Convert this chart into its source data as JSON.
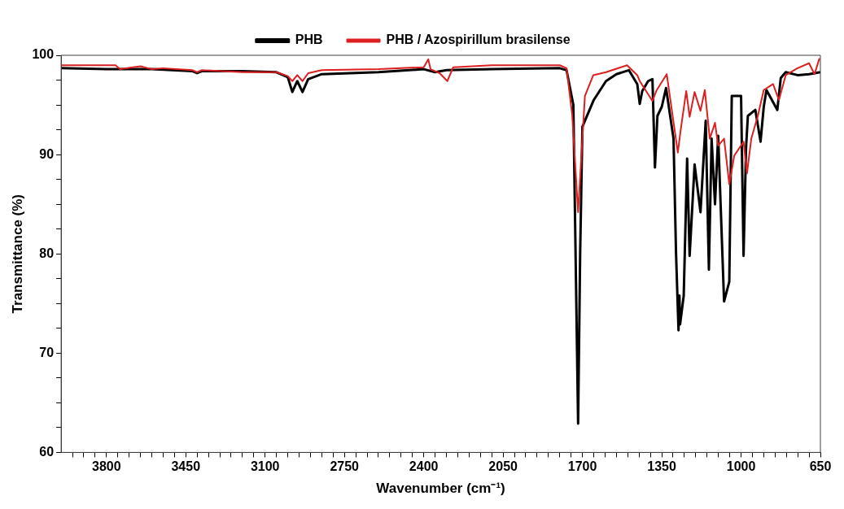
{
  "chart_data": {
    "type": "line",
    "xlabel": "Wavenumber (cm⁻¹)",
    "ylabel": "Transmittance (%)",
    "xlim": [
      4000,
      650
    ],
    "ylim": [
      60,
      100
    ],
    "xticks": [
      {
        "value": 3950,
        "label": null
      },
      {
        "value": 3900,
        "label": null
      },
      {
        "value": 3850,
        "label": null
      },
      3800,
      {
        "value": 3750,
        "label": null
      },
      {
        "value": 3700,
        "label": null
      },
      {
        "value": 3650,
        "label": null
      },
      {
        "value": 3600,
        "label": null
      },
      {
        "value": 3550,
        "label": null
      },
      {
        "value": 3500,
        "label": null
      },
      3450,
      {
        "value": 3400,
        "label": null
      },
      {
        "value": 3350,
        "label": null
      },
      {
        "value": 3300,
        "label": null
      },
      {
        "value": 3250,
        "label": null
      },
      {
        "value": 3200,
        "label": null
      },
      {
        "value": 3150,
        "label": null
      },
      3100,
      {
        "value": 3050,
        "label": null
      },
      {
        "value": 3000,
        "label": null
      },
      {
        "value": 2950,
        "label": null
      },
      {
        "value": 2900,
        "label": null
      },
      {
        "value": 2850,
        "label": null
      },
      {
        "value": 2800,
        "label": null
      },
      2750,
      {
        "value": 2700,
        "label": null
      },
      {
        "value": 2650,
        "label": null
      },
      {
        "value": 2600,
        "label": null
      },
      {
        "value": 2550,
        "label": null
      },
      {
        "value": 2500,
        "label": null
      },
      {
        "value": 2450,
        "label": null
      },
      2400,
      {
        "value": 2350,
        "label": null
      },
      {
        "value": 2300,
        "label": null
      },
      {
        "value": 2250,
        "label": null
      },
      {
        "value": 2200,
        "label": null
      },
      {
        "value": 2150,
        "label": null
      },
      {
        "value": 2100,
        "label": null
      },
      2050,
      {
        "value": 2000,
        "label": null
      },
      {
        "value": 1950,
        "label": null
      },
      {
        "value": 1900,
        "label": null
      },
      {
        "value": 1850,
        "label": null
      },
      {
        "value": 1800,
        "label": null
      },
      {
        "value": 1750,
        "label": null
      },
      1700,
      {
        "value": 1650,
        "label": null
      },
      {
        "value": 1600,
        "label": null
      },
      {
        "value": 1550,
        "label": null
      },
      {
        "value": 1500,
        "label": null
      },
      {
        "value": 1450,
        "label": null
      },
      {
        "value": 1400,
        "label": null
      },
      1350,
      {
        "value": 1300,
        "label": null
      },
      {
        "value": 1250,
        "label": null
      },
      {
        "value": 1200,
        "label": null
      },
      {
        "value": 1150,
        "label": null
      },
      {
        "value": 1100,
        "label": null
      },
      {
        "value": 1050,
        "label": null
      },
      1000,
      {
        "value": 950,
        "label": null
      },
      {
        "value": 900,
        "label": null
      },
      {
        "value": 850,
        "label": null
      },
      {
        "value": 800,
        "label": null
      },
      {
        "value": 750,
        "label": null
      },
      {
        "value": 700,
        "label": null
      },
      650
    ],
    "yticks": [
      60,
      {
        "value": 62.5,
        "label": null
      },
      {
        "value": 65,
        "label": null
      },
      {
        "value": 67.5,
        "label": null
      },
      70,
      {
        "value": 72.5,
        "label": null
      },
      {
        "value": 75,
        "label": null
      },
      {
        "value": 77.5,
        "label": null
      },
      80,
      {
        "value": 82.5,
        "label": null
      },
      {
        "value": 85,
        "label": null
      },
      {
        "value": 87.5,
        "label": null
      },
      90,
      {
        "value": 92.5,
        "label": null
      },
      {
        "value": 95,
        "label": null
      },
      {
        "value": 97.5,
        "label": null
      },
      100
    ],
    "grid": false,
    "legend": "top",
    "marker": "none",
    "line_style": "solid",
    "series": [
      {
        "name": "PHB",
        "color": "#000000",
        "x": [
          4000,
          3800,
          3600,
          3420,
          3400,
          3380,
          3200,
          3050,
          3000,
          2980,
          2958,
          2935,
          2910,
          2850,
          2600,
          2400,
          2350,
          2300,
          2100,
          1800,
          1770,
          1740,
          1719,
          1710,
          1700,
          1650,
          1596,
          1550,
          1495,
          1458,
          1447,
          1436,
          1410,
          1391,
          1380,
          1369,
          1350,
          1331,
          1298,
          1287,
          1276,
          1272,
          1269,
          1253,
          1238,
          1227,
          1205,
          1179,
          1156,
          1142,
          1130,
          1115,
          1101,
          1075,
          1052,
          1041,
          1000,
          989,
          978,
          970,
          937,
          914,
          900,
          888,
          840,
          825,
          803,
          751,
          700,
          650
        ],
        "values": [
          98.7,
          98.6,
          98.6,
          98.4,
          98.2,
          98.4,
          98.4,
          98.3,
          97.8,
          96.3,
          97.4,
          96.3,
          97.6,
          98.1,
          98.3,
          98.6,
          98.3,
          98.5,
          98.6,
          98.7,
          98.5,
          95,
          62.9,
          80,
          92.8,
          95.5,
          97.4,
          98.1,
          98.5,
          97.1,
          95.1,
          96.4,
          97.4,
          97.6,
          88.7,
          93.9,
          94.8,
          96.7,
          91.6,
          80.1,
          72.3,
          75.8,
          72.9,
          75.8,
          89.6,
          79.8,
          89.0,
          84.2,
          93.4,
          78.4,
          91.6,
          85.0,
          91.9,
          75.2,
          77.2,
          95.9,
          95.9,
          79.8,
          90.7,
          93.9,
          94.5,
          91.3,
          94.8,
          96.5,
          94.5,
          97.7,
          98.3,
          98.0,
          98.1,
          98.3
        ]
      },
      {
        "name": "PHB / Azospirillum brasilense",
        "color": "#dd1f1f",
        "x": [
          4000,
          3760,
          3740,
          3650,
          3600,
          3550,
          3420,
          3400,
          3380,
          3200,
          3050,
          3000,
          2980,
          2958,
          2935,
          2910,
          2850,
          2600,
          2400,
          2380,
          2370,
          2330,
          2296,
          2270,
          2100,
          1800,
          1770,
          1745,
          1719,
          1689,
          1652,
          1596,
          1503,
          1458,
          1447,
          1391,
          1372,
          1328,
          1279,
          1268,
          1242,
          1227,
          1205,
          1179,
          1160,
          1138,
          1115,
          1101,
          1075,
          1052,
          1030,
          989,
          974,
          955,
          926,
          900,
          859,
          833,
          803,
          751,
          700,
          676,
          654
        ],
        "values": [
          99.0,
          99.0,
          98.6,
          98.9,
          98.6,
          98.7,
          98.5,
          98.3,
          98.5,
          98.3,
          98.3,
          97.9,
          97.4,
          98.0,
          97.4,
          98.2,
          98.5,
          98.6,
          98.8,
          99.6,
          98.6,
          98.2,
          97.4,
          98.8,
          99.0,
          99.0,
          98.7,
          94,
          84.2,
          95.9,
          98.0,
          98.3,
          99.0,
          98.0,
          97.4,
          95.4,
          96.5,
          98.1,
          90.2,
          92.2,
          96.4,
          93.8,
          96.3,
          94.4,
          96.5,
          91.6,
          93.2,
          90.9,
          91.6,
          87.0,
          89.9,
          91.3,
          88.1,
          91.6,
          93.9,
          96.5,
          97.1,
          95.5,
          98.0,
          98.7,
          99.2,
          98.1,
          99.7
        ]
      }
    ]
  }
}
